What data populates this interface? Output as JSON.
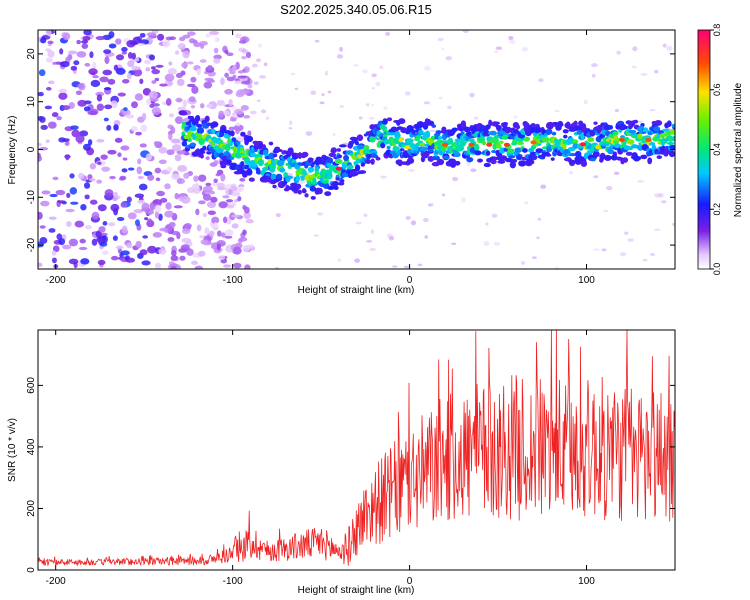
{
  "title": "S202.2025.340.05.06.R15",
  "chart_data": [
    {
      "type": "heatmap",
      "xlabel": "Height of straight line (km)",
      "ylabel": "Frequency (Hz)",
      "xlim": [
        -210,
        150
      ],
      "ylim": [
        -25,
        25
      ],
      "xticks": [
        -200,
        -100,
        0,
        100
      ],
      "yticks": [
        -20,
        -10,
        0,
        10,
        20
      ],
      "colorbar": {
        "label": "Normalized spectral amplitude",
        "range": [
          0.0,
          0.8
        ],
        "ticks": [
          "0.0",
          "0.2",
          "0.4",
          "0.6",
          "0.8"
        ]
      },
      "ridge": {
        "description": "frequency of the dominant signal band vs height",
        "x": [
          -130,
          -120,
          -110,
          -100,
          -90,
          -80,
          -70,
          -60,
          -50,
          -40,
          -30,
          -20,
          -15,
          -10,
          0,
          10,
          20,
          40,
          60,
          80,
          100,
          120,
          140,
          150
        ],
        "y": [
          4,
          3,
          2,
          0,
          -2,
          -3,
          -4,
          -5,
          -6,
          -4,
          -1,
          1,
          4,
          2,
          1,
          2,
          1,
          1,
          1,
          2,
          1,
          2,
          2,
          3
        ]
      },
      "noise_region_x": [
        -210,
        -100
      ]
    },
    {
      "type": "line",
      "xlabel": "Height of straight line (km)",
      "ylabel": "SNR (10 * v/v)",
      "xlim": [
        -210,
        150
      ],
      "ylim": [
        0,
        780
      ],
      "xticks": [
        -200,
        -100,
        0,
        100
      ],
      "yticks": [
        0,
        200,
        400,
        600
      ],
      "series": [
        {
          "name": "SNR",
          "color": "#ee2222",
          "x": [
            -210,
            -180,
            -150,
            -120,
            -110,
            -100,
            -95,
            -90,
            -85,
            -80,
            -70,
            -60,
            -50,
            -40,
            -35,
            -30,
            -25,
            -20,
            -10,
            0,
            10,
            20,
            30,
            40,
            50,
            60,
            70,
            80,
            90,
            100,
            110,
            120,
            130,
            140,
            150
          ],
          "y": [
            25,
            25,
            28,
            30,
            35,
            55,
            70,
            90,
            80,
            60,
            70,
            80,
            90,
            60,
            70,
            130,
            180,
            210,
            250,
            290,
            320,
            360,
            370,
            380,
            390,
            400,
            385,
            400,
            380,
            395,
            390,
            380,
            370,
            380,
            370
          ],
          "spread": [
            10,
            10,
            12,
            15,
            18,
            30,
            45,
            60,
            50,
            35,
            40,
            50,
            55,
            40,
            60,
            90,
            110,
            130,
            160,
            180,
            200,
            210,
            220,
            230,
            230,
            240,
            230,
            240,
            230,
            230,
            240,
            230,
            230,
            230,
            230
          ]
        }
      ]
    }
  ]
}
